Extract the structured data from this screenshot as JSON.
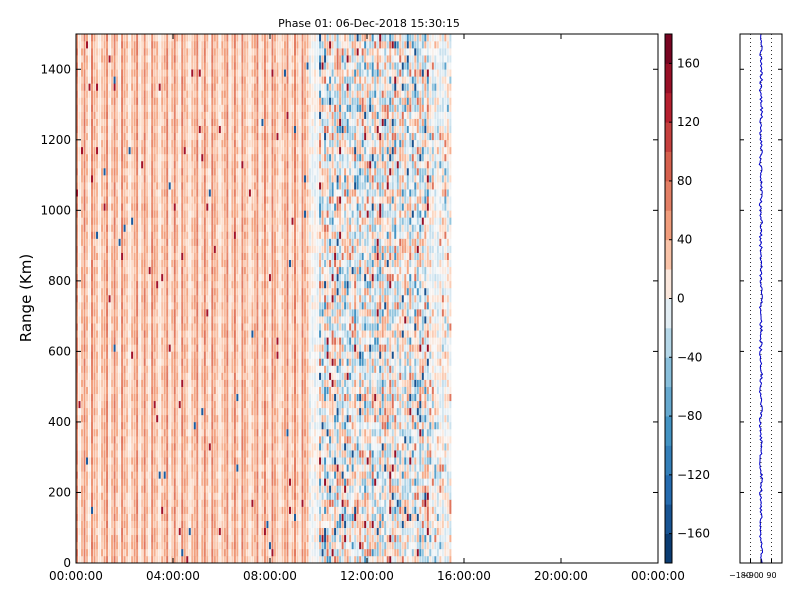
{
  "chart_data": [
    {
      "type": "heatmap",
      "title": "Phase 01: 06-Dec-2018 15:30:15",
      "xlabel": "",
      "ylabel": "Range (Km)",
      "x_ticks": [
        "00:00:00",
        "04:00:00",
        "08:00:00",
        "12:00:00",
        "16:00:00",
        "20:00:00",
        "00:00:00"
      ],
      "y_ticks": [
        0,
        200,
        400,
        600,
        800,
        1000,
        1200,
        1400
      ],
      "ylim": [
        0,
        1500
      ],
      "x_range_hours": [
        0,
        24
      ],
      "data_extent_hours": [
        0,
        15.5
      ],
      "colormap": "RdBu_r",
      "description_of_values": "phase in degrees; early hours (00-09h) mostly light positive (orange, ~40-80); after ~09:40 mixed noisy positive/negative values (blue and red speckle) until ~15:30",
      "colorbar": {
        "ticks": [
          -160,
          -120,
          -80,
          -40,
          0,
          40,
          80,
          120,
          160
        ],
        "range": [
          -180,
          180
        ]
      }
    },
    {
      "type": "line",
      "title": "",
      "xlabel": "",
      "ylabel": "",
      "x_ticks": [
        "-180",
        "-90",
        "0",
        "90"
      ],
      "xlim": [
        -180,
        180
      ],
      "ylim": [
        0,
        1500
      ],
      "series": [
        {
          "description": "phase profile vs range, values fluctuating around ~0 degrees",
          "color": "#0000cc"
        }
      ]
    }
  ]
}
